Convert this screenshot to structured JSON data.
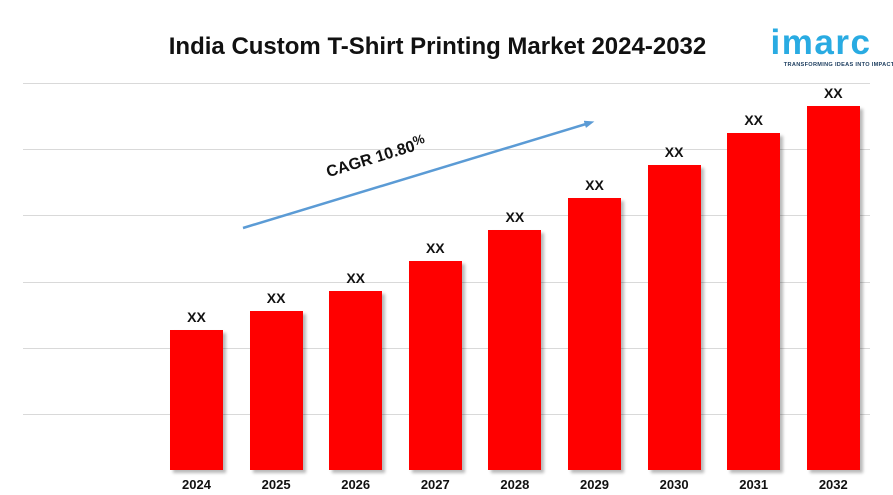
{
  "header": {
    "title": "India Custom T-Shirt Printing Market 2024-2032"
  },
  "logo": {
    "brand": "imarc",
    "tagline": "TRANSFORMING IDEAS INTO IMPACT",
    "brand_color": "#29ABE2",
    "tagline_color": "#1A3B5D"
  },
  "annotation": {
    "cagr_text": "CAGR 10.80",
    "cagr_percent_sign": "%"
  },
  "chart_data": {
    "type": "bar",
    "title": "India Custom T-Shirt Printing Market 2024-2032",
    "categories": [
      "2024",
      "2025",
      "2026",
      "2027",
      "2028",
      "2029",
      "2030",
      "2031",
      "2032"
    ],
    "value_labels": [
      "XX",
      "XX",
      "XX",
      "XX",
      "XX",
      "XX",
      "XX",
      "XX",
      "XX"
    ],
    "values_relative": [
      140,
      159,
      179,
      209,
      240,
      272,
      305,
      337,
      364
    ],
    "values_note": "actual market values are masked as XX in the figure; values_relative are bar heights estimated from the chart in plot units",
    "ylim": [
      0,
      387
    ],
    "xlabel": "",
    "ylabel": "",
    "grid": true,
    "gridline_count": 6,
    "legend": "none",
    "annotation": "CAGR 10.80%",
    "style": {
      "bar_color": "#FF0000",
      "arrow_color": "#5B9BD5",
      "gridline_color": "#D9D9D9",
      "label_color": "#111111",
      "title_color": "#111111"
    }
  }
}
